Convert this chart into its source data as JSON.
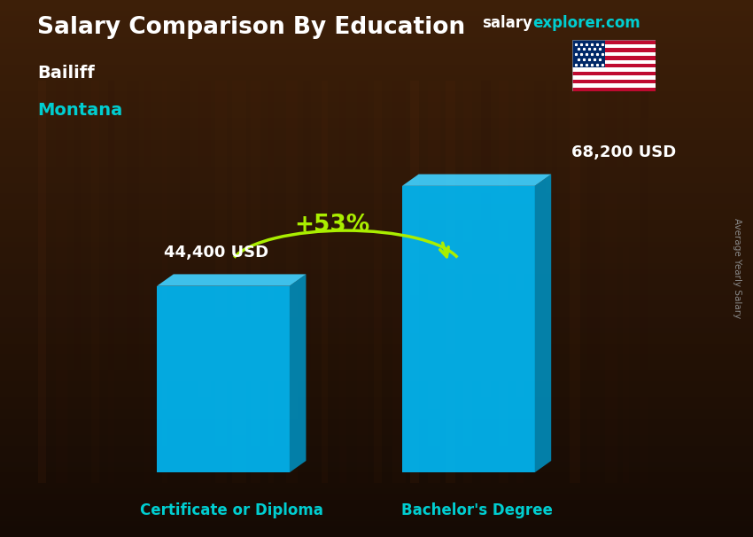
{
  "title_main": "Salary Comparison By Education",
  "title_sub1": "Bailiff",
  "title_sub2": "Montana",
  "watermark1": "salary",
  "watermark2": "explorer.com",
  "ylabel": "Average Yearly Salary",
  "categories": [
    "Certificate or Diploma",
    "Bachelor's Degree"
  ],
  "values": [
    44400,
    68200
  ],
  "value_labels": [
    "44,400 USD",
    "68,200 USD"
  ],
  "pct_change": "+53%",
  "bar_color_front": "#00BFFF",
  "bar_color_side": "#0090C0",
  "bar_color_top": "#40D0FF",
  "background_top": "#3a2010",
  "background_mid": "#2a1a08",
  "background_bottom": "#1a1208",
  "title_color": "#FFFFFF",
  "subtitle1_color": "#FFFFFF",
  "subtitle2_color": "#00CED1",
  "label_color": "#00CED1",
  "value_color": "#FFFFFF",
  "pct_color": "#AAEE00",
  "arrow_color": "#AAEE00",
  "watermark_color1": "#FFFFFF",
  "watermark_color2": "#00CED1",
  "side_label_color": "#888888",
  "figsize": [
    8.5,
    6.06
  ],
  "dpi": 100
}
